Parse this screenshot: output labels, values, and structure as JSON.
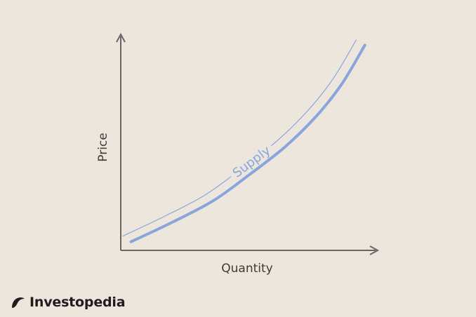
{
  "colors": {
    "background": "#ede6dd",
    "axis": "#676767",
    "curve": "#88a6db",
    "brand_mark": "#1d1d1d"
  },
  "chart_data": {
    "type": "line",
    "title": "",
    "xlabel": "Quantity",
    "ylabel": "Price",
    "xlim": [
      0,
      100
    ],
    "ylim": [
      0,
      100
    ],
    "grid": false,
    "legend": "none",
    "axis_ticks": false,
    "series": [
      {
        "name": "Supply",
        "x": [
          4,
          20,
          36,
          50,
          64,
          76,
          86,
          95
        ],
        "y": [
          4,
          13,
          23,
          35,
          48,
          62,
          77,
          95
        ]
      }
    ]
  },
  "brand": {
    "name": "Investopedia",
    "icon": "investopedia-logo-icon"
  }
}
